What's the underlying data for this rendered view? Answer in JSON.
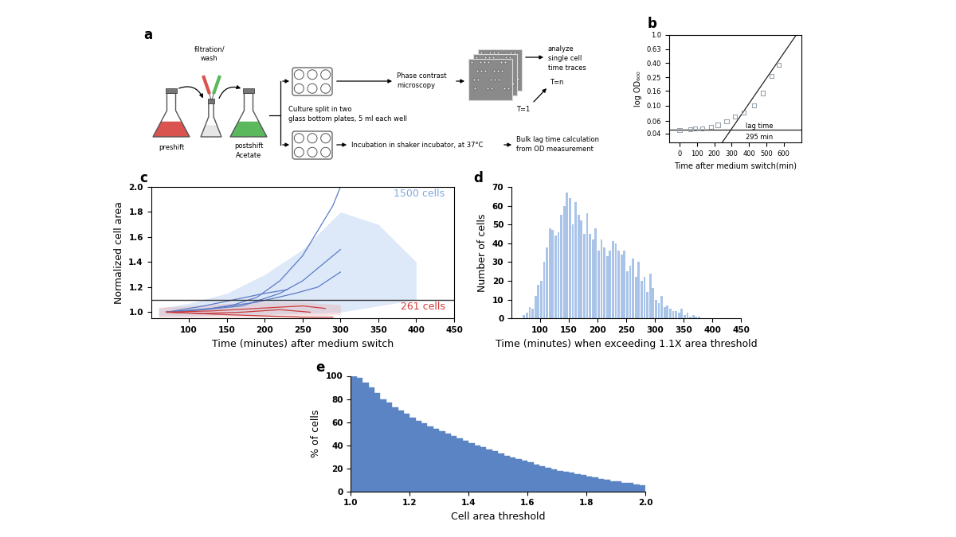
{
  "diagram": {
    "panel": "a",
    "filtration": [
      "filtration/",
      "wash"
    ],
    "preshift": "preshift",
    "postshift": [
      "postshift",
      "Acetate"
    ],
    "culture": [
      "Culture split in two",
      "glass bottom plates, 5 ml each well"
    ],
    "microscopy": [
      "Phase contrast",
      "microscopy"
    ],
    "analyze": [
      "analyze",
      "single cell",
      "time traces"
    ],
    "frames": [
      "T=n",
      "T=1"
    ],
    "incubation": "Incubation in shaker incubator, at 37°C",
    "bulk": [
      "Bulk lag time calculation",
      "from OD measurement"
    ]
  },
  "chart_data": [
    {
      "panel": "b",
      "type": "line",
      "log": "y",
      "xlabel": "Time after medium switch(min)",
      "ylabel": "log OD₆₀₀",
      "xlim": [
        -60,
        700
      ],
      "xticks": [
        0,
        100,
        200,
        300,
        400,
        500,
        600
      ],
      "ylim": [
        0.03,
        1.0
      ],
      "yticks": [
        0.04,
        0.06,
        {
          "value": 0.1,
          "label": "0.10"
        },
        0.16,
        0.25,
        {
          "value": 0.4,
          "label": "0.40"
        },
        0.63,
        {
          "value": 1,
          "label": "1.0"
        }
      ],
      "annotations": [
        "lag time",
        "295 min"
      ],
      "series": [
        {
          "type": "scatter",
          "marker": "square",
          "color": "#9aa3ad",
          "x": [
            0,
            60,
            90,
            130,
            180,
            220,
            270,
            320,
            370,
            430,
            480,
            530,
            570
          ],
          "values": [
            0.045,
            0.046,
            0.047,
            0.047,
            0.05,
            0.053,
            0.06,
            0.07,
            0.08,
            0.1,
            0.15,
            0.26,
            0.38
          ]
        },
        {
          "type": "line",
          "line_style": "solid",
          "color": "#222222",
          "x": [
            246,
            672
          ],
          "values": [
            0.03,
            1.0
          ]
        },
        {
          "type": "line",
          "line_style": "solid",
          "color": "#222222",
          "x": [
            -60,
            700
          ],
          "values": [
            0.045,
            0.045
          ]
        }
      ]
    },
    {
      "panel": "c",
      "type": "line",
      "xlabel": "Time (minutes) after medium switch",
      "ylabel": "Normalized cell area",
      "xlim": [
        50,
        450
      ],
      "xticks": [
        100,
        150,
        200,
        250,
        300,
        350,
        400,
        450
      ],
      "ylim": [
        0.95,
        2.0
      ],
      "yticks": [
        1.0,
        1.2,
        1.4,
        1.6,
        1.8,
        2.0
      ],
      "threshold": 1.1,
      "annotations": [
        {
          "text": "1500 cells",
          "color": "#7fa7de"
        },
        {
          "text": "261 cells",
          "color": "#d63a3a"
        }
      ],
      "series": [
        {
          "type": "area",
          "color": "#8fb3e8",
          "x": [
            60,
            100,
            150,
            200,
            250,
            300,
            350,
            400
          ],
          "lower": [
            0.97,
            0.97,
            0.98,
            0.98,
            0.99,
            1.0,
            1.05,
            1.1
          ],
          "upper": [
            1.03,
            1.07,
            1.15,
            1.3,
            1.5,
            1.8,
            1.7,
            1.4
          ]
        },
        {
          "type": "area",
          "color": "#e8a0a0",
          "x": [
            60,
            100,
            150,
            200,
            250,
            300
          ],
          "lower": [
            0.96,
            0.96,
            0.96,
            0.96,
            0.97,
            0.98
          ],
          "upper": [
            1.04,
            1.05,
            1.07,
            1.08,
            1.08,
            1.06
          ]
        },
        {
          "type": "line",
          "color": "#5a7cc8",
          "x": [
            70,
            100,
            130,
            160,
            190,
            220,
            250,
            270,
            290,
            300
          ],
          "values": [
            1.0,
            1.01,
            1.03,
            1.06,
            1.12,
            1.25,
            1.45,
            1.65,
            1.85,
            2.0
          ]
        },
        {
          "type": "line",
          "color": "#5a7cc8",
          "x": [
            70,
            120,
            170,
            220,
            250,
            280,
            300
          ],
          "values": [
            1.0,
            1.02,
            1.05,
            1.15,
            1.25,
            1.4,
            1.5
          ]
        },
        {
          "type": "line",
          "color": "#5a7cc8",
          "x": [
            70,
            130,
            190,
            240,
            270,
            300
          ],
          "values": [
            1.0,
            1.03,
            1.08,
            1.15,
            1.2,
            1.32
          ]
        },
        {
          "type": "line",
          "color": "#5a7cc8",
          "x": [
            70,
            120,
            160,
            200,
            230
          ],
          "values": [
            1.0,
            1.05,
            1.1,
            1.15,
            1.18
          ]
        },
        {
          "type": "line",
          "color": "#c83c3c",
          "x": [
            70,
            130,
            190,
            250,
            280
          ],
          "values": [
            1.0,
            1.01,
            1.03,
            1.05,
            1.03
          ]
        },
        {
          "type": "line",
          "color": "#c83c3c",
          "x": [
            70,
            120,
            170,
            220,
            260
          ],
          "values": [
            1.0,
            0.99,
            1.0,
            1.02,
            1.0
          ]
        },
        {
          "type": "line",
          "color": "#c83c3c",
          "x": [
            70,
            150,
            200,
            250,
            290
          ],
          "values": [
            1.0,
            0.98,
            0.97,
            0.96,
            0.96
          ]
        }
      ]
    },
    {
      "panel": "d",
      "type": "histogram",
      "color": "#a9c4e8",
      "xlabel": "Time (minutes) when exceeding 1.1X area threshold",
      "ylabel": "Number of cells",
      "xlim": [
        50,
        450
      ],
      "xticks": [
        100,
        150,
        200,
        250,
        300,
        350,
        400,
        450
      ],
      "ylim": [
        0,
        70
      ],
      "yticks": [
        0,
        10,
        20,
        30,
        40,
        50,
        60,
        70
      ],
      "bins": [
        70,
        75,
        80,
        85,
        90,
        95,
        100,
        105,
        110,
        115,
        120,
        125,
        130,
        135,
        140,
        145,
        150,
        155,
        160,
        165,
        170,
        175,
        180,
        185,
        190,
        195,
        200,
        205,
        210,
        215,
        220,
        225,
        230,
        235,
        240,
        245,
        250,
        255,
        260,
        265,
        270,
        275,
        280,
        285,
        290,
        295,
        300,
        305,
        310,
        315,
        320,
        325,
        330,
        335,
        340,
        345,
        350,
        355,
        360,
        365,
        370,
        375,
        380
      ],
      "values": [
        2,
        3,
        6,
        5,
        12,
        18,
        20,
        30,
        38,
        48,
        47,
        44,
        46,
        55,
        60,
        67,
        64,
        50,
        62,
        55,
        52,
        45,
        56,
        45,
        42,
        48,
        36,
        42,
        38,
        33,
        36,
        41,
        40,
        36,
        34,
        36,
        25,
        28,
        32,
        22,
        30,
        20,
        22,
        14,
        24,
        16,
        10,
        8,
        12,
        6,
        7,
        5,
        4,
        4,
        3,
        5,
        2,
        3,
        1,
        2,
        1,
        1
      ]
    },
    {
      "panel": "e",
      "type": "histogram",
      "color": "#5b84c4",
      "xlabel": "Cell area threshold",
      "ylabel": "% of cells",
      "xlim": [
        1.0,
        2.0
      ],
      "xticks": [
        1.0,
        1.2,
        1.4,
        1.6,
        1.8,
        2.0
      ],
      "ylim": [
        0,
        100
      ],
      "yticks": [
        0,
        20,
        40,
        60,
        80,
        100
      ],
      "bins": [
        1.0,
        1.02,
        1.04,
        1.06,
        1.08,
        1.1,
        1.12,
        1.14,
        1.16,
        1.18,
        1.2,
        1.22,
        1.24,
        1.26,
        1.28,
        1.3,
        1.32,
        1.34,
        1.36,
        1.38,
        1.4,
        1.42,
        1.44,
        1.46,
        1.48,
        1.5,
        1.52,
        1.54,
        1.56,
        1.58,
        1.6,
        1.62,
        1.64,
        1.66,
        1.68,
        1.7,
        1.72,
        1.74,
        1.76,
        1.78,
        1.8,
        1.82,
        1.84,
        1.86,
        1.88,
        1.9,
        1.92,
        1.94,
        1.96,
        1.98,
        2.0
      ],
      "values": [
        100,
        98,
        94,
        90,
        85,
        80,
        77,
        73,
        70,
        67,
        64,
        61,
        59,
        56,
        54,
        52,
        50,
        48,
        46,
        44,
        42,
        40,
        38,
        36,
        35,
        33,
        31,
        29.5,
        28,
        26.5,
        25,
        23.5,
        22,
        20.5,
        19,
        18,
        17,
        16,
        15,
        14,
        13,
        12,
        11,
        10,
        9,
        8.5,
        7.5,
        7,
        6,
        5.5
      ]
    }
  ]
}
